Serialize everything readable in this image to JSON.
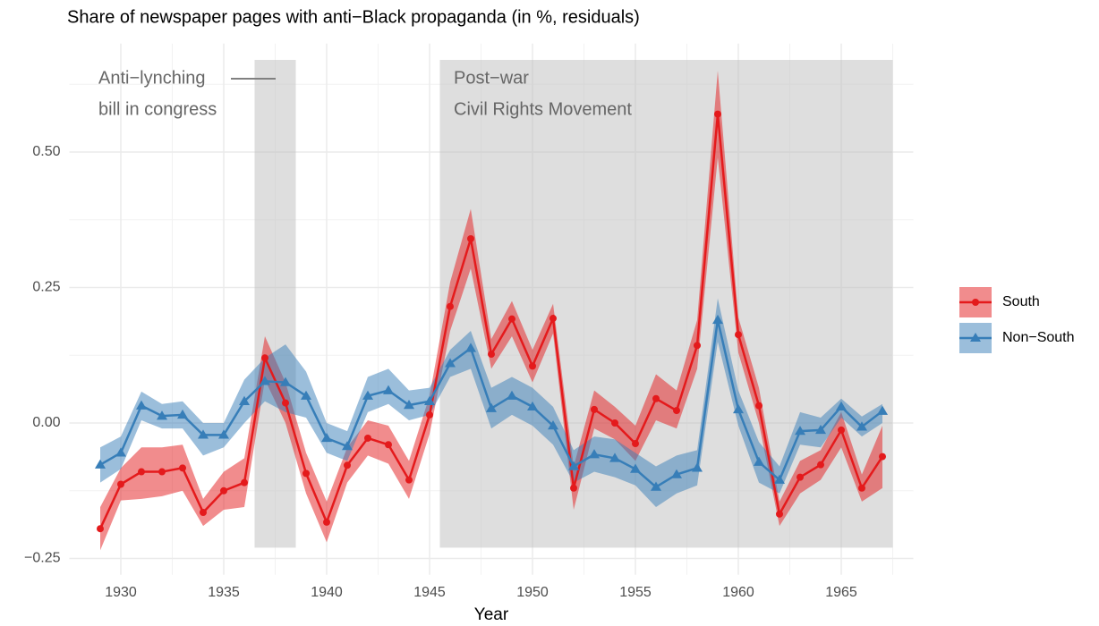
{
  "chart_data": {
    "type": "line",
    "title": "Share of newspaper pages with anti−Black propaganda (in %, residuals)",
    "x_label": "Year",
    "x": [
      1929,
      1930,
      1931,
      1932,
      1933,
      1934,
      1935,
      1936,
      1937,
      1938,
      1939,
      1940,
      1941,
      1942,
      1943,
      1944,
      1945,
      1946,
      1947,
      1948,
      1949,
      1950,
      1951,
      1952,
      1953,
      1954,
      1955,
      1956,
      1957,
      1958,
      1959,
      1960,
      1961,
      1962,
      1963,
      1964,
      1965,
      1966,
      1967
    ],
    "xlim": [
      1927.5,
      1968.5
    ],
    "xticks": [
      1930,
      1935,
      1940,
      1945,
      1950,
      1955,
      1960,
      1965
    ],
    "xminor": [
      1932.5,
      1937.5,
      1942.5,
      1947.5,
      1952.5,
      1957.5,
      1962.5,
      1967.5
    ],
    "ylim": [
      -0.28,
      0.7
    ],
    "yticks": [
      {
        "value": -0.25,
        "label": "−0.25"
      },
      {
        "value": 0,
        "label": "0.00"
      },
      {
        "value": 0.25,
        "label": "0.25"
      },
      {
        "value": 0.5,
        "label": "0.50"
      }
    ],
    "yminor": [
      -0.125,
      0.125,
      0.375,
      0.625
    ],
    "grid": true,
    "legend": "right",
    "shaded_regions": [
      {
        "xlim": [
          1936.5,
          1938.5
        ],
        "ylim": [
          -0.23,
          0.67
        ]
      },
      {
        "xlim": [
          1945.5,
          1967.5
        ],
        "ylim": [
          -0.23,
          0.67
        ]
      }
    ],
    "annotations": [
      {
        "lines": [
          "Anti−lynching",
          "bill in congress"
        ]
      },
      {
        "lines": [
          "Post−war",
          "Civil Rights Movement"
        ]
      }
    ],
    "series": [
      {
        "name": "South",
        "color": "#e41a1c",
        "marker": "circle",
        "values": [
          -0.195,
          -0.113,
          -0.09,
          -0.09,
          -0.083,
          -0.165,
          -0.125,
          -0.11,
          0.12,
          0.037,
          -0.093,
          -0.183,
          -0.078,
          -0.028,
          -0.04,
          -0.105,
          0.015,
          0.215,
          0.34,
          0.127,
          0.192,
          0.105,
          0.193,
          -0.12,
          0.025,
          0.0,
          -0.038,
          0.045,
          0.023,
          0.143,
          0.57,
          0.163,
          0.032,
          -0.168,
          -0.1,
          -0.077,
          -0.013,
          -0.12,
          -0.062
        ],
        "lower": [
          -0.235,
          -0.143,
          -0.14,
          -0.135,
          -0.125,
          -0.19,
          -0.16,
          -0.155,
          0.08,
          0.0,
          -0.13,
          -0.22,
          -0.11,
          -0.06,
          -0.075,
          -0.14,
          -0.02,
          0.17,
          0.285,
          0.1,
          0.16,
          0.075,
          0.165,
          -0.16,
          -0.01,
          -0.03,
          -0.07,
          0.005,
          -0.01,
          0.1,
          0.49,
          0.13,
          0.0,
          -0.19,
          -0.13,
          -0.105,
          -0.045,
          -0.145,
          -0.12
        ],
        "upper": [
          -0.155,
          -0.083,
          -0.045,
          -0.045,
          -0.04,
          -0.14,
          -0.09,
          -0.065,
          0.16,
          0.075,
          -0.055,
          -0.145,
          -0.045,
          0.005,
          -0.005,
          -0.07,
          0.05,
          0.26,
          0.395,
          0.155,
          0.225,
          0.135,
          0.22,
          -0.08,
          0.06,
          0.03,
          -0.005,
          0.09,
          0.06,
          0.19,
          0.65,
          0.195,
          0.065,
          -0.145,
          -0.07,
          -0.05,
          0.02,
          -0.095,
          -0.005
        ]
      },
      {
        "name": "Non−South",
        "color": "#377eb8",
        "marker": "triangle",
        "values": [
          -0.077,
          -0.055,
          0.032,
          0.013,
          0.015,
          -0.022,
          -0.022,
          0.04,
          0.077,
          0.075,
          0.05,
          -0.028,
          -0.043,
          0.05,
          0.06,
          0.033,
          0.04,
          0.11,
          0.138,
          0.027,
          0.05,
          0.03,
          -0.005,
          -0.08,
          -0.058,
          -0.065,
          -0.085,
          -0.118,
          -0.095,
          -0.083,
          0.19,
          0.025,
          -0.072,
          -0.105,
          -0.015,
          -0.013,
          0.03,
          -0.007,
          0.022
        ],
        "lower": [
          -0.11,
          -0.085,
          0.005,
          -0.01,
          -0.01,
          -0.06,
          -0.045,
          0.0,
          0.04,
          0.02,
          0.01,
          -0.055,
          -0.07,
          0.02,
          0.035,
          0.005,
          0.015,
          0.085,
          0.1,
          -0.01,
          0.015,
          -0.005,
          -0.04,
          -0.11,
          -0.09,
          -0.1,
          -0.115,
          -0.155,
          -0.13,
          -0.115,
          0.15,
          -0.005,
          -0.11,
          -0.13,
          -0.04,
          -0.045,
          0.01,
          -0.025,
          0.0
        ],
        "upper": [
          -0.045,
          -0.025,
          0.058,
          0.035,
          0.04,
          0.0,
          0.0,
          0.08,
          0.12,
          0.145,
          0.095,
          0.0,
          -0.015,
          0.085,
          0.1,
          0.06,
          0.065,
          0.135,
          0.17,
          0.065,
          0.085,
          0.065,
          0.03,
          -0.05,
          -0.025,
          -0.03,
          -0.055,
          -0.08,
          -0.06,
          -0.05,
          0.23,
          0.06,
          -0.035,
          -0.08,
          0.02,
          0.01,
          0.045,
          0.012,
          0.035
        ]
      }
    ]
  }
}
